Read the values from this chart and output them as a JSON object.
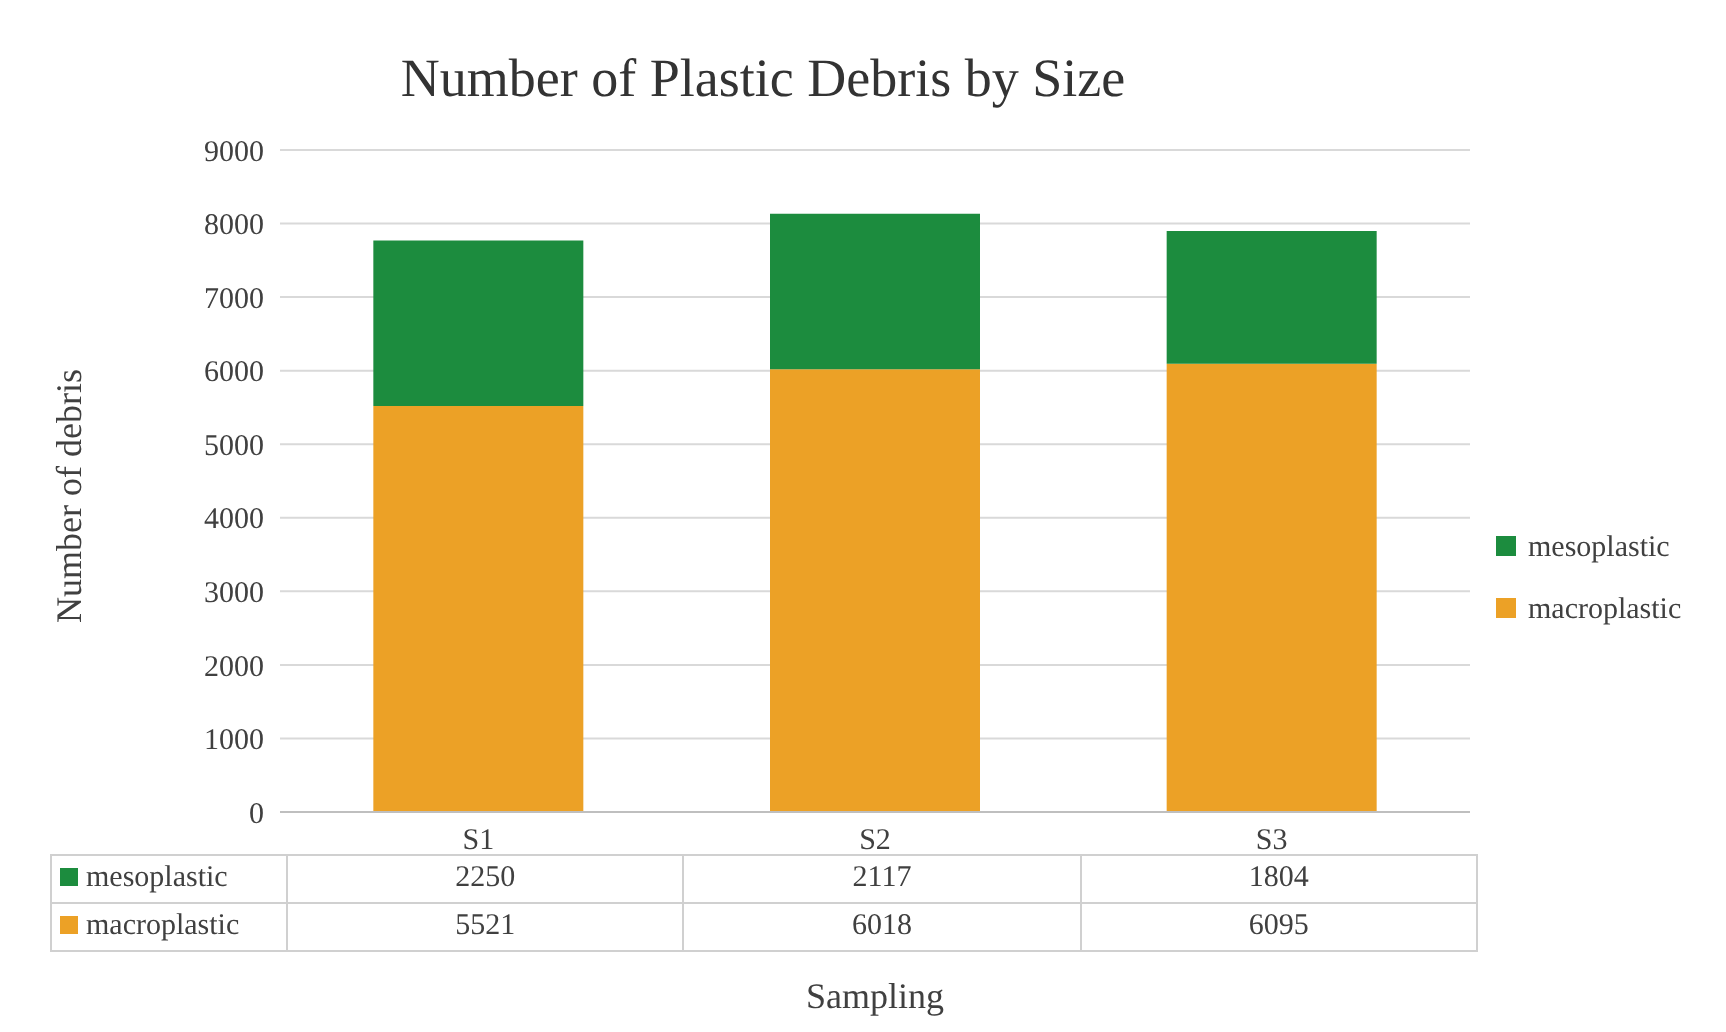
{
  "chart_data": {
    "type": "bar",
    "title": "Number of Plastic Debris by Size",
    "xlabel": "Sampling",
    "ylabel": "Number of debris",
    "categories": [
      "S1",
      "S2",
      "S3"
    ],
    "stacked": true,
    "series": [
      {
        "name": "macroplastic",
        "color": "#eca126",
        "values": [
          5521,
          6018,
          6095
        ]
      },
      {
        "name": "mesoplastic",
        "color": "#1c8c3e",
        "values": [
          2250,
          2117,
          1804
        ]
      }
    ],
    "ylim": [
      0,
      9000
    ],
    "yticks": [
      0,
      1000,
      2000,
      3000,
      4000,
      5000,
      6000,
      7000,
      8000,
      9000
    ],
    "grid": "y",
    "legend": "right",
    "data_labels": true
  }
}
